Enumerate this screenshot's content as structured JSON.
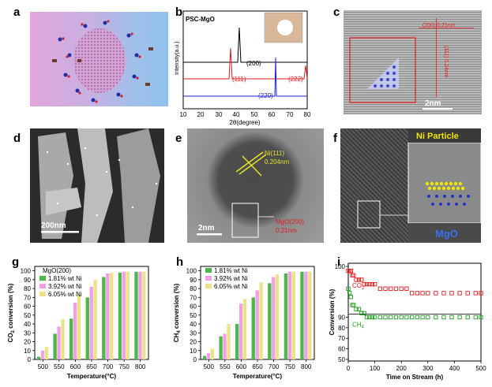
{
  "panel_labels": {
    "a": "a",
    "b": "b",
    "c": "c",
    "d": "d",
    "e": "e",
    "f": "f",
    "g": "g",
    "h": "h",
    "i": "i"
  },
  "b": {
    "title": "PSC-MgO",
    "ylabel": "Intensity(a.u.)",
    "xlabel": "2θ(degree)",
    "xticks": [
      "10",
      "20",
      "30",
      "40",
      "50",
      "60",
      "70",
      "80"
    ],
    "peaks": [
      "(200)",
      "(111)",
      "(222)",
      "(220)"
    ],
    "colors": {
      "black": "#000000",
      "red": "#e41a1c",
      "blue": "#1f1fd6"
    }
  },
  "c": {
    "ann1": "(200) 0.21nm",
    "ann2": "(111) 0.24nm",
    "scale": "2nm"
  },
  "d": {
    "scale": "200nm"
  },
  "e": {
    "ann_ni_1": "Ni(111)",
    "ann_ni_2": "0.204nm",
    "ann_mgo_1": "MgO(200)",
    "ann_mgo_2": "0.21nm",
    "scale": "2nm"
  },
  "f": {
    "ni": "Ni Particle",
    "mgo": "MgO"
  },
  "chart_data": [
    {
      "panel": "g",
      "type": "bar",
      "legend_title": "MgO(200)",
      "categories": [
        "500",
        "550",
        "600",
        "650",
        "700",
        "750",
        "800"
      ],
      "series": [
        {
          "name": "1.81% wt Ni",
          "color": "#4cb84c",
          "values": [
            3,
            29,
            46,
            70,
            93,
            98,
            99
          ]
        },
        {
          "name": "3.92% wt Ni",
          "color": "#f2a0e6",
          "values": [
            10,
            37,
            64,
            82,
            97,
            99,
            99
          ]
        },
        {
          "name": "6.05% wt Ni",
          "color": "#ede28a",
          "values": [
            14,
            45,
            73,
            90,
            98,
            99,
            99
          ]
        }
      ],
      "ylabel": "CO2 conversion (%)",
      "ylabel_main": "CO",
      "ylabel_sub": "2",
      "ylabel_rest": " conversion (%)",
      "xlabel": "Temperature(°C)",
      "yticks": [
        "0",
        "10",
        "20",
        "30",
        "40",
        "50",
        "60",
        "70",
        "80",
        "90",
        "100"
      ],
      "ylim": [
        0,
        105
      ]
    },
    {
      "panel": "h",
      "type": "bar",
      "categories": [
        "500",
        "550",
        "600",
        "650",
        "700",
        "750",
        "800"
      ],
      "series": [
        {
          "name": "1.81% wt Ni",
          "color": "#4cb84c",
          "values": [
            4,
            26,
            40,
            70,
            86,
            97,
            99
          ]
        },
        {
          "name": "3.92% wt Ni",
          "color": "#f2a0e6",
          "values": [
            7,
            29,
            63,
            78,
            93,
            99,
            99
          ]
        },
        {
          "name": "6.05% wt Ni",
          "color": "#ede28a",
          "values": [
            12,
            40,
            68,
            87,
            96,
            99,
            99
          ]
        }
      ],
      "ylabel": "CH4 conversion (%)",
      "ylabel_main": "CH",
      "ylabel_sub": "4",
      "ylabel_rest": " conversion (%)",
      "xlabel": "Temperature(°C)",
      "yticks": [
        "0",
        "10",
        "20",
        "30",
        "40",
        "50",
        "60",
        "70",
        "80",
        "90",
        "100"
      ],
      "ylim": [
        0,
        105
      ]
    },
    {
      "panel": "i",
      "type": "scatter",
      "series": [
        {
          "name": "CO2",
          "label_main": "CO",
          "label_sub": "2",
          "color": "#e41a1c",
          "x": [
            0,
            5,
            10,
            15,
            20,
            30,
            40,
            50,
            60,
            70,
            80,
            90,
            100,
            120,
            140,
            160,
            180,
            200,
            220,
            240,
            260,
            280,
            300,
            330,
            360,
            390,
            420,
            450,
            480,
            500
          ],
          "y": [
            99,
            99,
            99,
            98,
            98,
            97,
            97,
            97,
            96,
            96,
            96,
            96,
            96,
            95,
            95,
            95,
            95,
            95,
            95,
            94,
            94,
            94,
            94,
            94,
            94,
            94,
            94,
            94,
            94,
            94
          ]
        },
        {
          "name": "CH4",
          "label_main": "CH",
          "label_sub": "4",
          "color": "#1e9e1e",
          "x": [
            0,
            5,
            10,
            15,
            20,
            30,
            40,
            50,
            60,
            70,
            80,
            90,
            100,
            120,
            140,
            160,
            180,
            200,
            220,
            240,
            260,
            280,
            300,
            330,
            360,
            390,
            420,
            450,
            480,
            500
          ],
          "y": [
            92,
            91,
            90,
            88,
            88,
            87,
            87,
            86,
            86,
            85,
            85,
            85,
            85,
            85,
            85,
            85,
            85,
            85,
            85,
            85,
            85,
            85,
            85,
            85,
            85,
            85,
            85,
            85,
            85,
            85
          ]
        }
      ],
      "ylabel": "Conversion (%)",
      "xlabel": "Time on Stream (h)",
      "xticks": [
        "0",
        "100",
        "200",
        "300",
        "400",
        "500"
      ],
      "xlim": [
        0,
        500
      ],
      "yticks": [
        "50",
        "60",
        "70",
        "80",
        "90",
        "100"
      ],
      "ylim": [
        50,
        100
      ]
    }
  ]
}
